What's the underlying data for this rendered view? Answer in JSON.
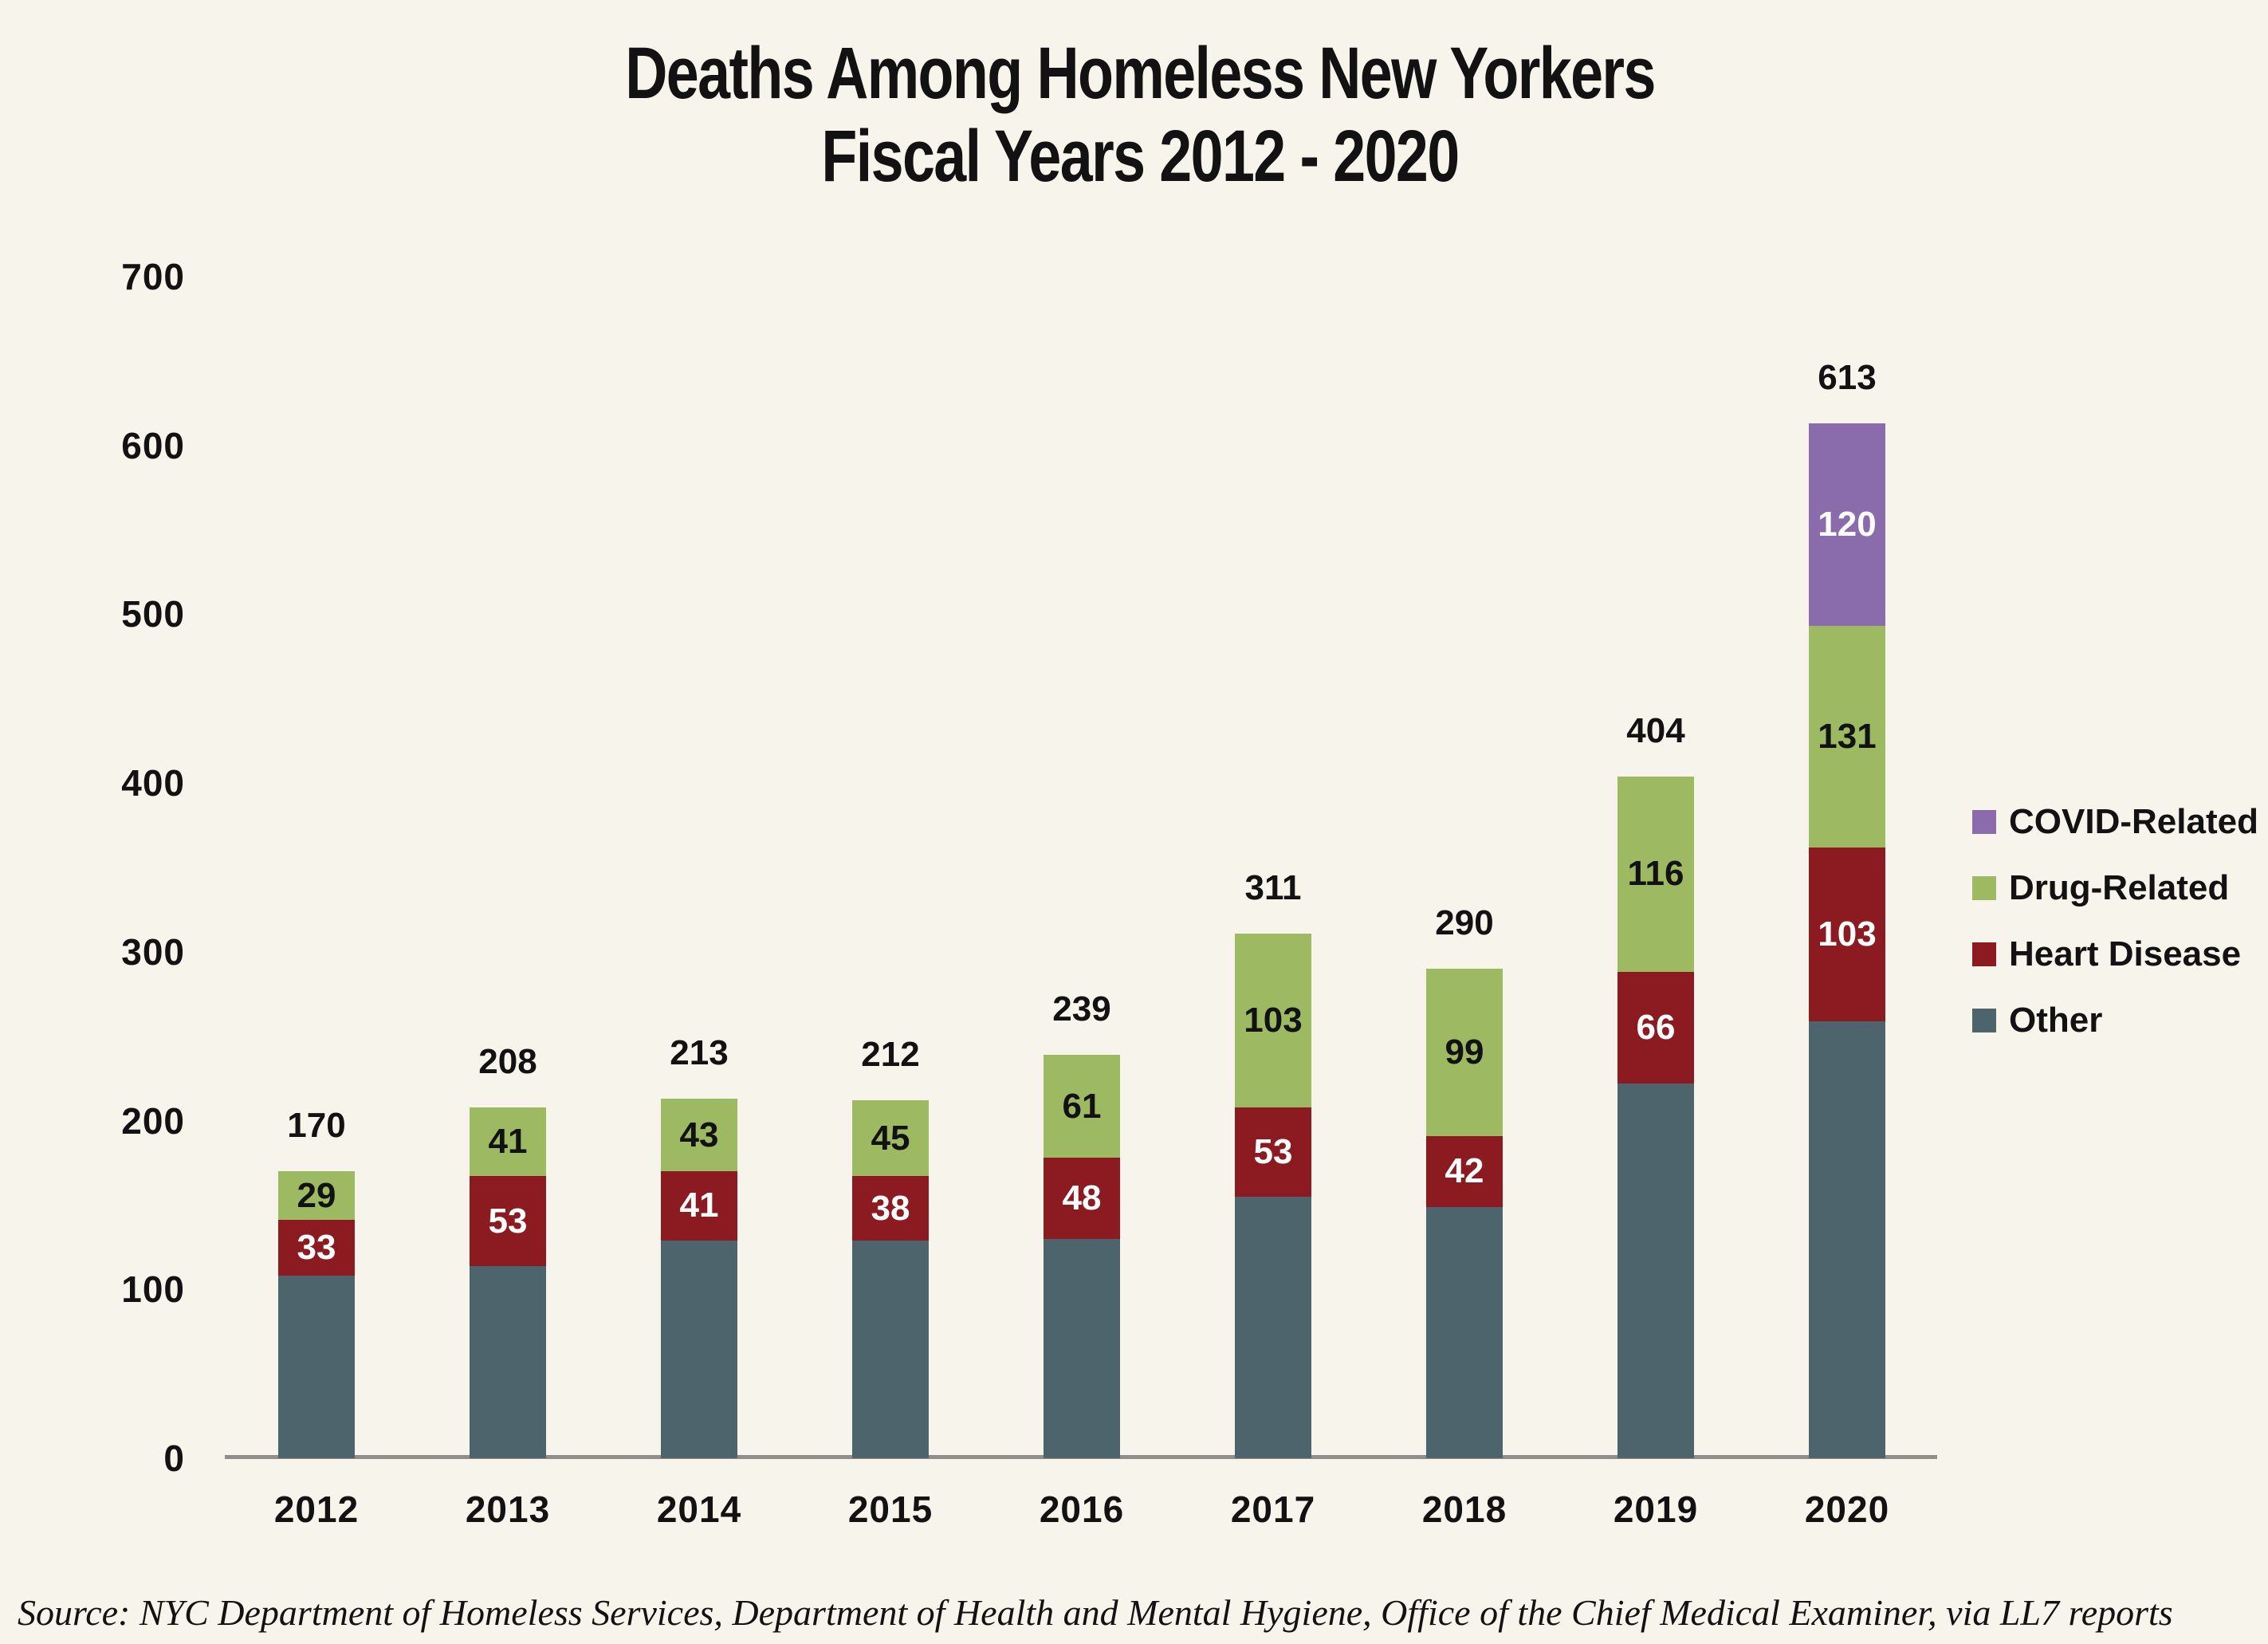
{
  "title": {
    "line1": "Deaths Among Homeless New Yorkers",
    "line2": "Fiscal Years 2012 - 2020"
  },
  "source": "Source: NYC Department of Homeless Services, Department of Health and Mental Hygiene, Office of the Chief Medical Examiner, via LL7 reports",
  "colors": {
    "background": "#F7F5EB",
    "covid": "#8A6BAB",
    "drug": "#9DBA62",
    "heart": "#8B1B20",
    "other": "#4D646C",
    "axis_line": "#8E8E8E",
    "text": "#121212",
    "label_on_dark": "#FFFFFF"
  },
  "legend": {
    "items": [
      {
        "label": "COVID-Related",
        "color": "#8A6BAB"
      },
      {
        "label": "Drug-Related",
        "color": "#9DBA62"
      },
      {
        "label": "Heart Disease",
        "color": "#8B1B20"
      },
      {
        "label": "Other",
        "color": "#4D646C"
      }
    ]
  },
  "chart_data": {
    "type": "bar",
    "stacked": true,
    "title": "Deaths Among Homeless New Yorkers",
    "subtitle": "Fiscal Years 2012 - 2020",
    "categories": [
      "2012",
      "2013",
      "2014",
      "2015",
      "2016",
      "2017",
      "2018",
      "2019",
      "2020"
    ],
    "series": [
      {
        "name": "Other",
        "color": "#4D646C",
        "values": [
          108,
          114,
          129,
          129,
          130,
          155,
          149,
          222,
          259
        ],
        "labels_shown": [
          null,
          null,
          null,
          null,
          null,
          null,
          null,
          null,
          null
        ],
        "label_color": "#FFFFFF"
      },
      {
        "name": "Heart Disease",
        "color": "#8B1B20",
        "values": [
          33,
          53,
          41,
          38,
          48,
          53,
          42,
          66,
          103
        ],
        "labels_shown": [
          "33",
          "53",
          "41",
          "38",
          "48",
          "53",
          "42",
          "66",
          "103"
        ],
        "label_color": "#FFFFFF"
      },
      {
        "name": "Drug-Related",
        "color": "#9DBA62",
        "values": [
          29,
          41,
          43,
          45,
          61,
          103,
          99,
          116,
          131
        ],
        "labels_shown": [
          "29",
          "41",
          "43",
          "45",
          "61",
          "103",
          "99",
          "116",
          "131"
        ],
        "label_color": "#121212"
      },
      {
        "name": "COVID-Related",
        "color": "#8A6BAB",
        "values": [
          0,
          0,
          0,
          0,
          0,
          0,
          0,
          0,
          120
        ],
        "labels_shown": [
          null,
          null,
          null,
          null,
          null,
          null,
          null,
          null,
          "120"
        ],
        "label_color": "#FFFFFF"
      }
    ],
    "totals": [
      170,
      208,
      213,
      212,
      239,
      311,
      290,
      404,
      613
    ],
    "ylim": [
      0,
      700
    ],
    "yticks": [
      0,
      100,
      200,
      300,
      400,
      500,
      600,
      700
    ],
    "grid": false,
    "legend_position": "right"
  }
}
